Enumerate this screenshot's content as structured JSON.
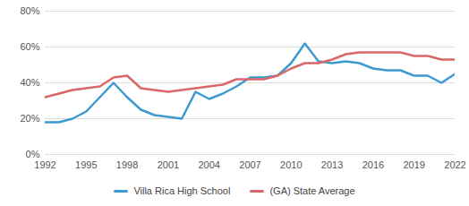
{
  "chart_data": {
    "type": "line",
    "x": [
      1992,
      1993,
      1994,
      1995,
      1996,
      1997,
      1998,
      1999,
      2000,
      2001,
      2002,
      2003,
      2004,
      2005,
      2006,
      2007,
      2008,
      2009,
      2010,
      2011,
      2012,
      2013,
      2014,
      2015,
      2016,
      2017,
      2018,
      2019,
      2020,
      2021,
      2022
    ],
    "series": [
      {
        "name": "Villa Rica High School",
        "color": "#3d9ad1",
        "values": [
          18,
          18,
          20,
          24,
          32,
          40,
          32,
          25,
          22,
          21,
          20,
          35,
          31,
          34,
          38,
          43,
          43,
          44,
          51,
          62,
          52,
          51,
          52,
          51,
          48,
          47,
          47,
          44,
          44,
          40,
          45
        ]
      },
      {
        "name": "(GA) State Average",
        "color": "#d9676a",
        "values": [
          32,
          34,
          36,
          37,
          38,
          43,
          44,
          37,
          36,
          35,
          36,
          37,
          38,
          39,
          42,
          42,
          42,
          44,
          48,
          51,
          51,
          53,
          56,
          57,
          57,
          57,
          57,
          55,
          55,
          53,
          53
        ]
      }
    ],
    "xlim": [
      1992,
      2022
    ],
    "xticks": [
      1992,
      1995,
      1998,
      2001,
      2004,
      2007,
      2010,
      2013,
      2016,
      2019,
      2022
    ],
    "ylim": [
      0,
      80
    ],
    "yticks": [
      {
        "value": 0,
        "label": "0%"
      },
      {
        "value": 20,
        "label": "20%"
      },
      {
        "value": 40,
        "label": "40%"
      },
      {
        "value": 60,
        "label": "60%"
      },
      {
        "value": 80,
        "label": "80%"
      }
    ],
    "grid": true,
    "legend": "bottom"
  }
}
